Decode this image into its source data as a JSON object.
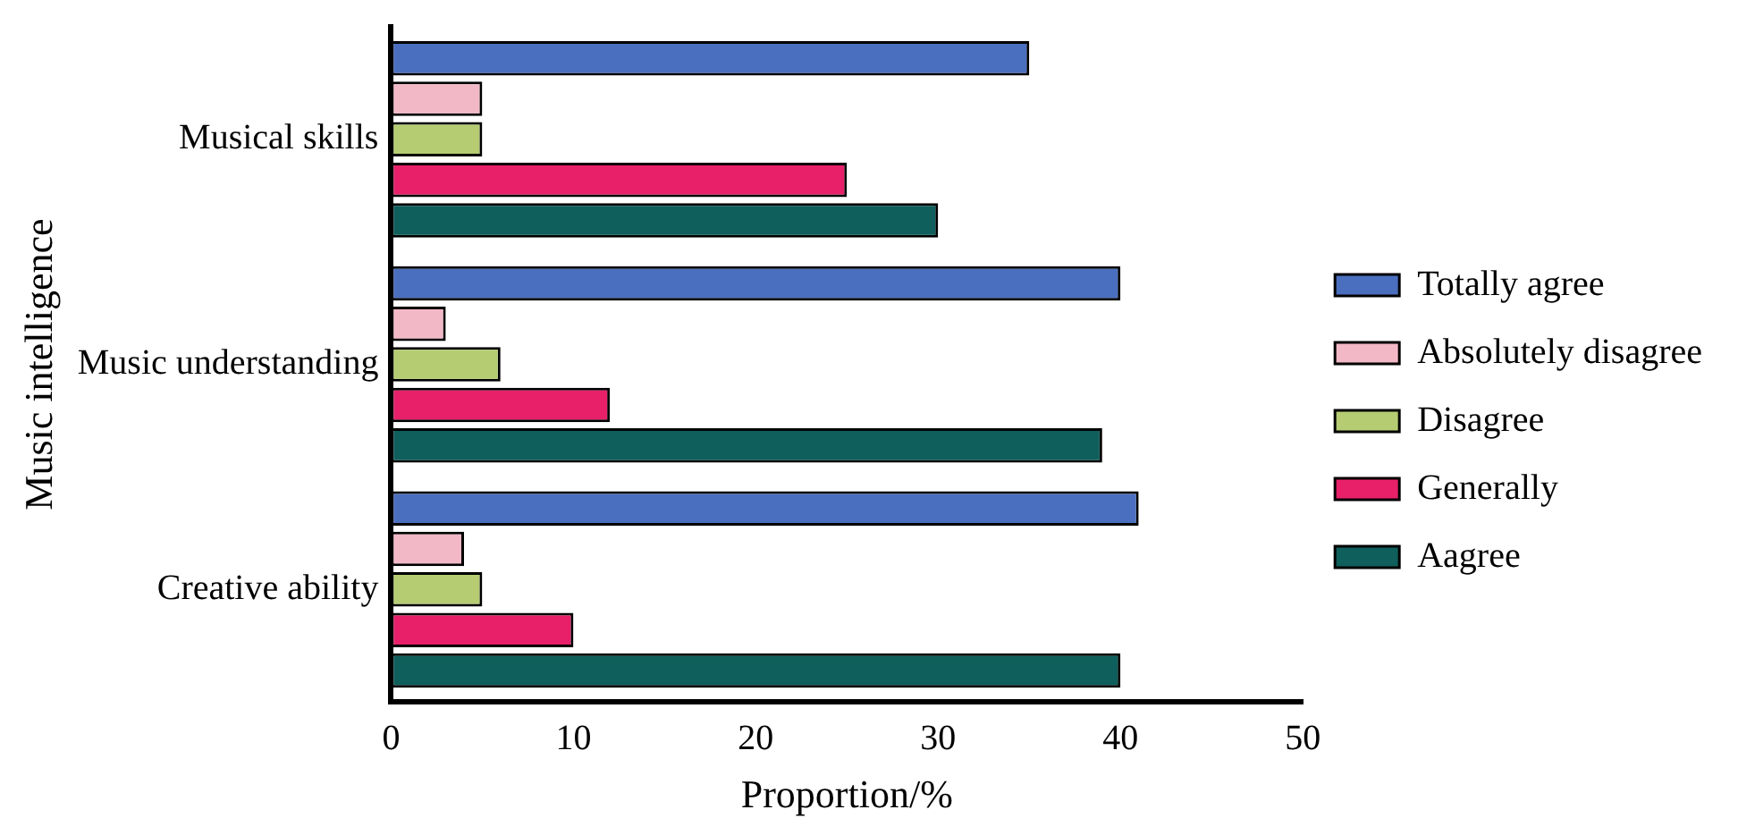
{
  "chart_data": {
    "type": "bar",
    "orientation": "horizontal",
    "xlabel": "Proportion/%",
    "ylabel": "Music intelligence",
    "categories": [
      "Musical skills",
      "Music understanding",
      "Creative ability"
    ],
    "series": [
      {
        "name": "Totally agree",
        "color": "#4a6fbf",
        "values": [
          35,
          40,
          41
        ]
      },
      {
        "name": "Absolutely disagree",
        "color": "#f2b8c6",
        "values": [
          5,
          3,
          4
        ]
      },
      {
        "name": "Disagree",
        "color": "#b5cc72",
        "values": [
          5,
          6,
          5
        ]
      },
      {
        "name": "Generally",
        "color": "#e8206a",
        "values": [
          25,
          12,
          10
        ]
      },
      {
        "name": "Aagree",
        "color": "#0f5f5c",
        "values": [
          30,
          39,
          40
        ]
      }
    ],
    "xlim": [
      0,
      50
    ],
    "xticks": [
      0,
      10,
      20,
      30,
      40,
      50
    ],
    "grid": false,
    "legend": "right"
  }
}
